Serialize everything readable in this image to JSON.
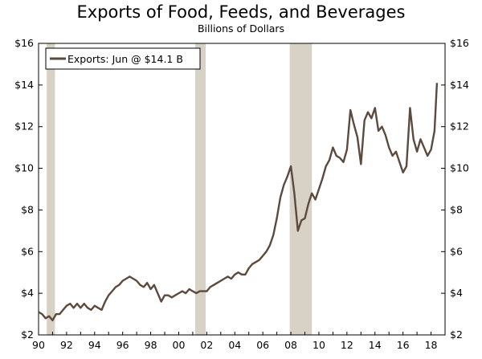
{
  "chart_data": {
    "type": "line",
    "title": "Exports of Food, Feeds, and Beverages",
    "subtitle": "Billions of Dollars",
    "xlabel": "",
    "ylabel": "",
    "xlim": [
      1990,
      2019
    ],
    "ylim": [
      2,
      16
    ],
    "y_ticks": [
      2,
      4,
      6,
      8,
      10,
      12,
      14,
      16
    ],
    "y_tick_labels": [
      "$2",
      "$4",
      "$6",
      "$8",
      "$10",
      "$12",
      "$14",
      "$16"
    ],
    "x_ticks": [
      1990,
      1992,
      1994,
      1996,
      1998,
      2000,
      2002,
      2004,
      2006,
      2008,
      2010,
      2012,
      2014,
      2016,
      2018
    ],
    "x_tick_labels": [
      "90",
      "92",
      "94",
      "96",
      "98",
      "00",
      "02",
      "04",
      "06",
      "08",
      "10",
      "12",
      "14",
      "16",
      "18"
    ],
    "grid": false,
    "legend_position": "top-left",
    "recession_shading": [
      [
        1990.58,
        1991.17
      ],
      [
        2001.17,
        2001.92
      ],
      [
        2007.92,
        2009.5
      ]
    ],
    "series": [
      {
        "name": "Exports: Jun @ $14.1 B",
        "color": "#5b4a3d",
        "x": [
          1990.0,
          1990.25,
          1990.5,
          1990.75,
          1991.0,
          1991.25,
          1991.5,
          1991.75,
          1992.0,
          1992.25,
          1992.5,
          1992.75,
          1993.0,
          1993.25,
          1993.5,
          1993.75,
          1994.0,
          1994.25,
          1994.5,
          1994.75,
          1995.0,
          1995.25,
          1995.5,
          1995.75,
          1996.0,
          1996.25,
          1996.5,
          1996.75,
          1997.0,
          1997.25,
          1997.5,
          1997.75,
          1998.0,
          1998.25,
          1998.5,
          1998.75,
          1999.0,
          1999.25,
          1999.5,
          1999.75,
          2000.0,
          2000.25,
          2000.5,
          2000.75,
          2001.0,
          2001.25,
          2001.5,
          2001.75,
          2002.0,
          2002.25,
          2002.5,
          2002.75,
          2003.0,
          2003.25,
          2003.5,
          2003.75,
          2004.0,
          2004.25,
          2004.5,
          2004.75,
          2005.0,
          2005.25,
          2005.5,
          2005.75,
          2006.0,
          2006.25,
          2006.5,
          2006.75,
          2007.0,
          2007.25,
          2007.5,
          2007.75,
          2008.0,
          2008.25,
          2008.5,
          2008.75,
          2009.0,
          2009.25,
          2009.5,
          2009.75,
          2010.0,
          2010.25,
          2010.5,
          2010.75,
          2011.0,
          2011.25,
          2011.5,
          2011.75,
          2012.0,
          2012.25,
          2012.5,
          2012.75,
          2013.0,
          2013.25,
          2013.5,
          2013.75,
          2014.0,
          2014.25,
          2014.5,
          2014.75,
          2015.0,
          2015.25,
          2015.5,
          2015.75,
          2016.0,
          2016.25,
          2016.5,
          2016.75,
          2017.0,
          2017.25,
          2017.5,
          2017.75,
          2018.0,
          2018.25,
          2018.42
        ],
        "values": [
          3.1,
          3.0,
          2.8,
          2.9,
          2.7,
          3.0,
          3.0,
          3.2,
          3.4,
          3.5,
          3.3,
          3.5,
          3.3,
          3.5,
          3.3,
          3.2,
          3.4,
          3.3,
          3.2,
          3.6,
          3.9,
          4.1,
          4.3,
          4.4,
          4.6,
          4.7,
          4.8,
          4.7,
          4.6,
          4.4,
          4.3,
          4.5,
          4.2,
          4.4,
          4.0,
          3.6,
          3.9,
          3.9,
          3.8,
          3.9,
          4.0,
          4.1,
          4.0,
          4.2,
          4.1,
          4.0,
          4.1,
          4.1,
          4.1,
          4.3,
          4.4,
          4.5,
          4.6,
          4.7,
          4.8,
          4.7,
          4.9,
          5.0,
          4.9,
          4.9,
          5.2,
          5.4,
          5.5,
          5.6,
          5.8,
          6.0,
          6.3,
          6.8,
          7.6,
          8.6,
          9.2,
          9.6,
          10.1,
          8.8,
          7.0,
          7.5,
          7.6,
          8.3,
          8.8,
          8.5,
          9.0,
          9.5,
          10.1,
          10.4,
          11.0,
          10.6,
          10.5,
          10.3,
          10.9,
          12.8,
          12.1,
          11.5,
          10.2,
          12.3,
          12.7,
          12.4,
          12.9,
          11.8,
          12.0,
          11.6,
          11.0,
          10.6,
          10.8,
          10.3,
          9.8,
          10.1,
          12.9,
          11.4,
          10.8,
          11.4,
          11.0,
          10.6,
          10.9,
          11.8,
          14.1
        ]
      }
    ]
  }
}
